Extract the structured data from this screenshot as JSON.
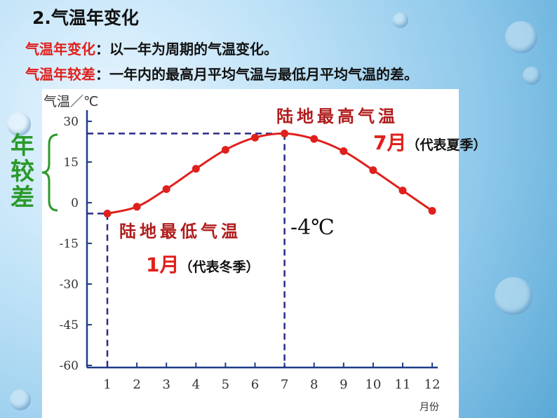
{
  "slide": {
    "title": "2.气温年变化",
    "def1_term": "气温年变化",
    "def1_text": "：以一年为周期的气温变化。",
    "def2_term": "气温年较差",
    "def2_text": "：一年内的最高月平均气温与最低月平均气温的差。"
  },
  "annotations": {
    "annual_range": "年较差",
    "highest_label": "陆地最高气温",
    "highest_month": "7月",
    "highest_note": "（代表夏季）",
    "lowest_label": "陆地最低气温",
    "lowest_value": "-4℃",
    "lowest_month": "1月",
    "lowest_note": "（代表冬季）"
  },
  "colors": {
    "curve": "#e0201c",
    "dashed": "#2a2a8a",
    "axis": "#1f3c88",
    "annual_range": "#2a9a2a",
    "accent_text": "#b01c1c"
  },
  "chart_data": {
    "type": "line",
    "ylabel": "气温／℃",
    "xlabel": "月份",
    "x": [
      1,
      2,
      3,
      4,
      5,
      6,
      7,
      8,
      9,
      10,
      11,
      12
    ],
    "x_tick_labels": [
      "1",
      "2",
      "3",
      "4",
      "5",
      "6",
      "7",
      "8",
      "9",
      "10",
      "11",
      "12"
    ],
    "y_ticks": [
      30,
      15,
      0,
      -15,
      -30,
      -45,
      -60
    ],
    "y_tick_labels": [
      "30",
      "15",
      "0",
      "-15",
      "-30",
      "-45",
      "-60"
    ],
    "ylim": [
      -60,
      30
    ],
    "grid": false,
    "legend": "none",
    "series": [
      {
        "values": [
          -4,
          -1.5,
          5,
          12.5,
          19.5,
          24,
          25.5,
          23.5,
          19,
          12,
          4.5,
          -3
        ]
      }
    ],
    "reference_lines": [
      {
        "kind": "horizontal",
        "y": 25.5,
        "label": "陆地最高气温"
      },
      {
        "kind": "horizontal",
        "y": -4,
        "label": "陆地最低气温"
      },
      {
        "kind": "vertical",
        "x": 1
      },
      {
        "kind": "vertical",
        "x": 7
      }
    ]
  }
}
